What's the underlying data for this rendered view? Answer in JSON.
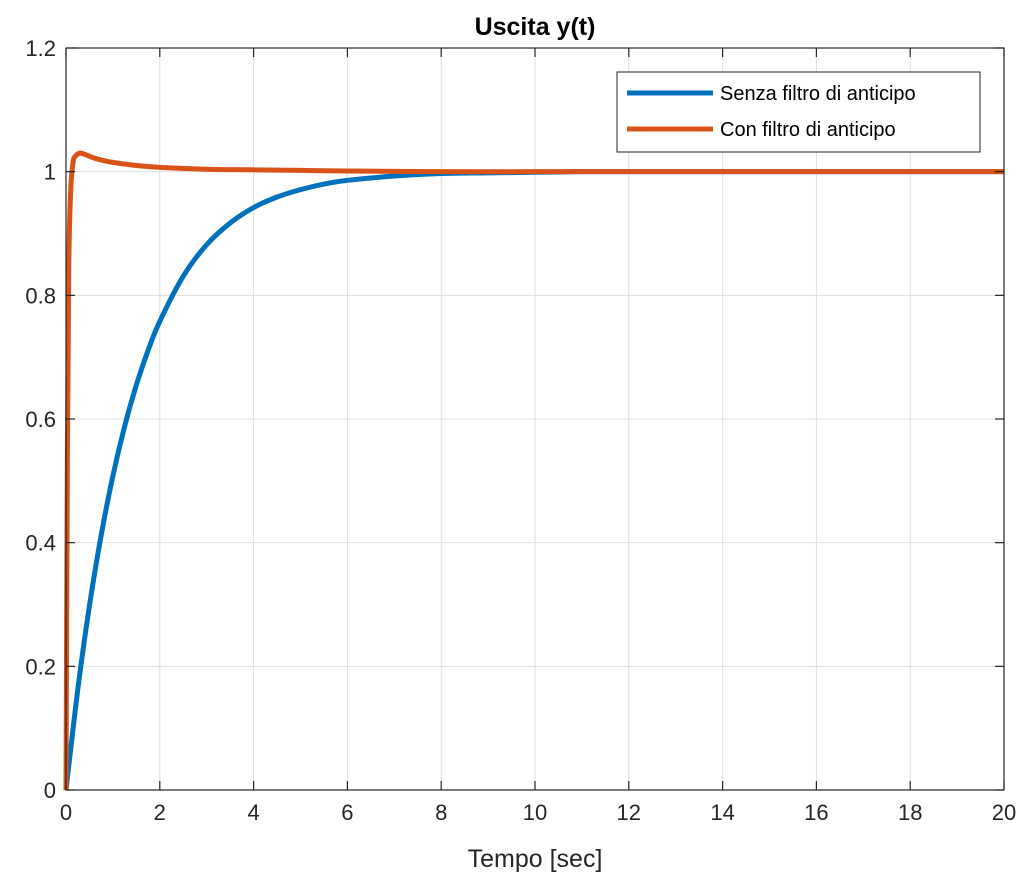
{
  "chart_data": {
    "type": "line",
    "title": "Uscita y(t)",
    "xlabel": "Tempo [sec]",
    "ylabel": "",
    "xlim": [
      0,
      20
    ],
    "ylim": [
      0,
      1.2
    ],
    "xticks": [
      "0",
      "2",
      "4",
      "6",
      "8",
      "10",
      "12",
      "14",
      "16",
      "18",
      "20"
    ],
    "yticks": [
      "0",
      "0.2",
      "0.4",
      "0.6",
      "0.8",
      "1",
      "1.2"
    ],
    "grid": true,
    "legend_position": "top-right",
    "series": [
      {
        "name": "Senza filtro di anticipo",
        "color": "#0072BD",
        "x": [
          0,
          0.25,
          0.5,
          0.75,
          1,
          1.25,
          1.5,
          1.75,
          2,
          2.5,
          3,
          3.5,
          4,
          4.5,
          5,
          5.5,
          6,
          7,
          8,
          9,
          10,
          11,
          12,
          14,
          16,
          18,
          20
        ],
        "y": [
          0,
          0.162,
          0.298,
          0.412,
          0.508,
          0.588,
          0.655,
          0.711,
          0.758,
          0.831,
          0.882,
          0.917,
          0.942,
          0.959,
          0.971,
          0.98,
          0.986,
          0.993,
          0.997,
          0.998,
          0.999,
          1.0,
          1.0,
          1.0,
          1.0,
          1.0,
          1.0
        ]
      },
      {
        "name": "Con filtro di anticipo",
        "color": "#D95319",
        "x": [
          0,
          0.03,
          0.06,
          0.1,
          0.15,
          0.2,
          0.3,
          0.4,
          0.6,
          0.8,
          1,
          1.5,
          2,
          3,
          4,
          5,
          6,
          8,
          10,
          12,
          14,
          16,
          18,
          20
        ],
        "y": [
          0,
          0.55,
          0.85,
          0.97,
          1.015,
          1.025,
          1.03,
          1.028,
          1.022,
          1.018,
          1.015,
          1.01,
          1.007,
          1.004,
          1.003,
          1.002,
          1.001,
          1.0,
          1.0,
          1.0,
          1.0,
          1.0,
          1.0,
          1.0
        ]
      }
    ]
  }
}
